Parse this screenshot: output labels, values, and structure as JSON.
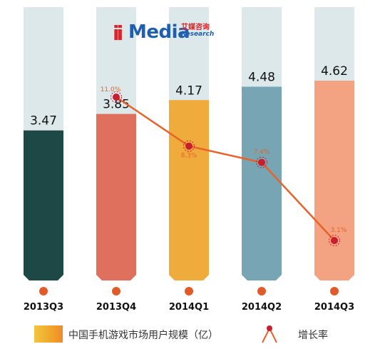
{
  "brand": {
    "mark": "ii",
    "word": "Media",
    "cn": "艾媒咨询",
    "en": "Research"
  },
  "colors": {
    "track": "#dce8ea",
    "line": "#e8622a",
    "marker": "#c81e2e",
    "axis_dot": "#e05a2a",
    "bars": [
      "#1e4846",
      "#e0705e",
      "#efab3c",
      "#77a5b3",
      "#f4a382"
    ]
  },
  "chart_data": {
    "type": "bar",
    "categories": [
      "2013Q3",
      "2013Q4",
      "2014Q1",
      "2014Q2",
      "2014Q3"
    ],
    "series": [
      {
        "name": "中国手机游戏市场用户规模（亿）",
        "type": "bar",
        "values": [
          3.47,
          3.85,
          4.17,
          4.48,
          4.62
        ],
        "labels": [
          "3.47",
          "3.85",
          "4.17",
          "4.48",
          "4.62"
        ]
      },
      {
        "name": "增长率",
        "type": "line",
        "values": [
          null,
          11.0,
          8.3,
          7.4,
          3.1
        ],
        "labels": [
          "",
          "11.0%",
          "8.3%",
          "7.4%",
          "3.1%"
        ]
      }
    ],
    "title": "",
    "xlabel": "",
    "ylabel": "",
    "legend": "bottom",
    "grid": false
  },
  "legend": {
    "bar_label": "中国手机游戏市场用户规模（亿）",
    "line_label": "增长率"
  }
}
